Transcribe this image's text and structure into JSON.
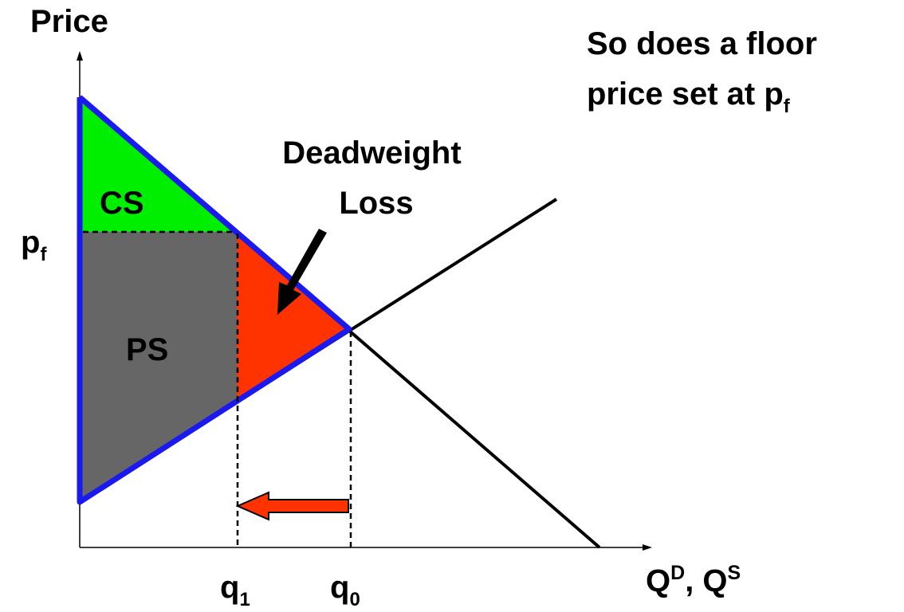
{
  "labels": {
    "y_axis": "Price",
    "x_axis_main": "Q",
    "x_axis_sup1": "D",
    "x_axis_sep": ", Q",
    "x_axis_sup2": "S",
    "price_floor_main": "p",
    "price_floor_sub": "f",
    "q1_main": "q",
    "q1_sub": "1",
    "q0_main": "q",
    "q0_sub": "0",
    "consumer_surplus": "CS",
    "producer_surplus": "PS",
    "deadweight_line1": "Deadweight",
    "deadweight_line2": "Loss",
    "caption_line1": "So does a floor",
    "caption_line2_main": "price set at p",
    "caption_line2_sub": "f"
  },
  "colors": {
    "consumer_surplus": "#00ee00",
    "producer_surplus": "#666666",
    "deadweight_loss": "#ff3300",
    "boundary": "#1a1aee",
    "curves": "#000000",
    "arrow": "#ff3300"
  }
}
